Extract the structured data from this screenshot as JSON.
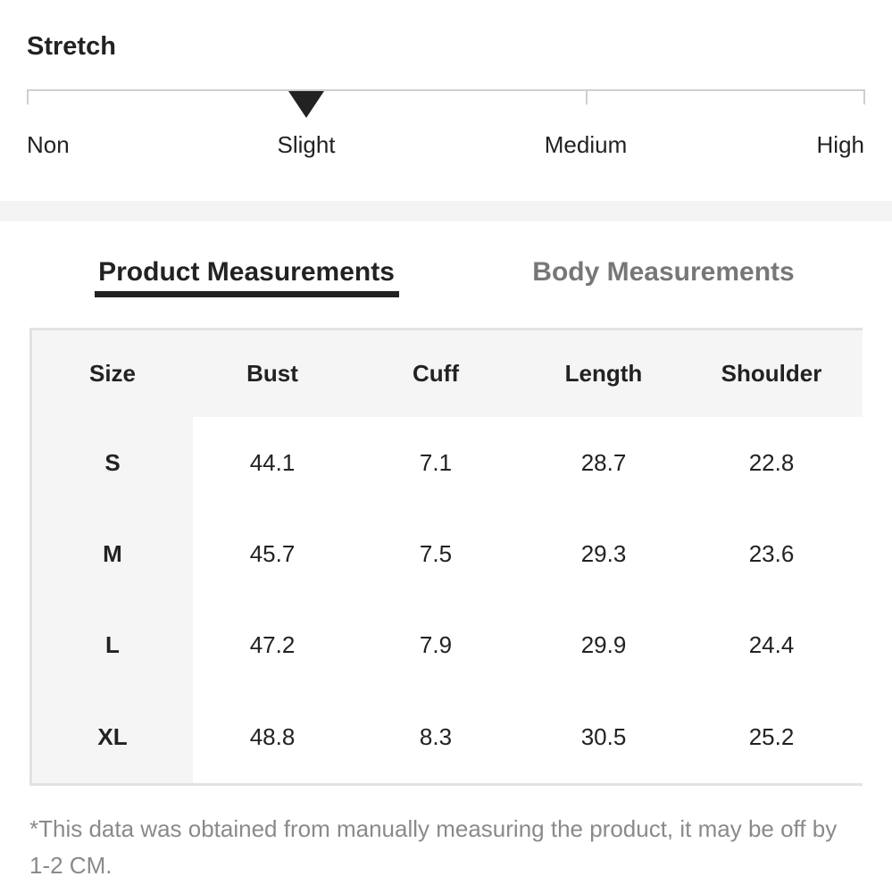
{
  "header": {
    "title": "Stretch"
  },
  "stretch": {
    "levels": [
      "Non",
      "Slight",
      "Medium",
      "High"
    ]
  },
  "tabs": [
    "Product Measurements",
    "Body Measurements"
  ],
  "table": {
    "columns": [
      "Size",
      "Bust",
      "Cuff",
      "Length",
      "Shoulder"
    ],
    "rows": [
      [
        "S",
        44.1,
        7.1,
        28.7,
        22.8
      ],
      [
        "M",
        45.7,
        7.5,
        29.3,
        23.6
      ],
      [
        "L",
        47.2,
        7.9,
        29.9,
        24.4
      ],
      [
        "XL",
        48.8,
        8.3,
        30.5,
        25.2
      ]
    ]
  },
  "footnote": "*This data was obtained from manually measuring the product, it may be off by 1-2 CM."
}
